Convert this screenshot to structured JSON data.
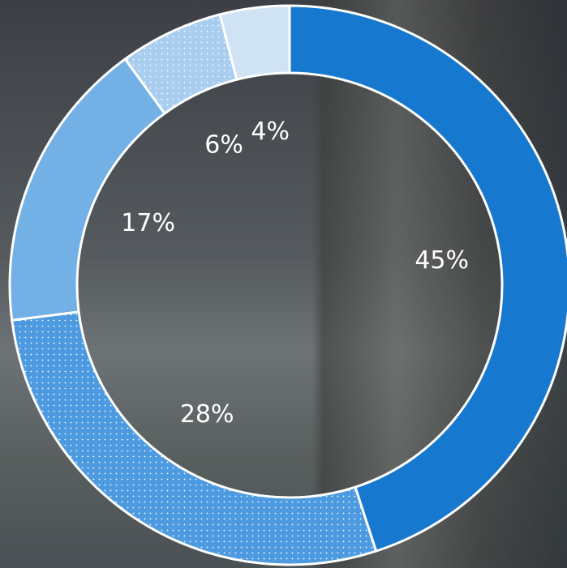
{
  "chart_data": {
    "type": "donut",
    "values": [
      45,
      28,
      17,
      6,
      4
    ],
    "value_labels": [
      "45%",
      "28%",
      "17%",
      "6%",
      "4%"
    ],
    "colors": [
      "#1778d0",
      "#4d9ae0",
      "#73b0e6",
      "#a8cdef",
      "#cfe3f5"
    ],
    "dotted": [
      false,
      true,
      false,
      true,
      false
    ]
  }
}
